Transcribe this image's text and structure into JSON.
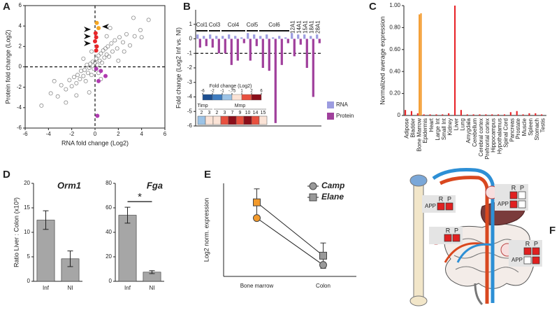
{
  "panel_labels": [
    "A",
    "B",
    "C",
    "D",
    "E",
    "F"
  ],
  "chart_data": [
    {
      "type": "scatter",
      "xlabel": "RNA fold change (Log2)",
      "ylabel": "Protein fold change (Log2)",
      "xlim": [
        -6,
        6
      ],
      "ylim": [
        -6,
        6
      ],
      "xticks": [
        -6,
        -4,
        -2,
        0,
        2,
        4,
        6
      ],
      "yticks": [
        -6,
        -4,
        -2,
        0,
        2,
        4,
        6
      ],
      "series": [
        {
          "color": "#8c8c8c",
          "marker": "open",
          "x": [
            -4.6,
            -3.8,
            -3.2,
            -2.9,
            -2.5,
            -2.2,
            -2.0,
            -1.8,
            -1.6,
            -1.5,
            -1.3,
            -1.2,
            -1.0,
            -0.9,
            -0.8,
            -0.7,
            -0.6,
            -0.5,
            -0.4,
            -0.3,
            -0.2,
            -0.1,
            0.0,
            0.1,
            0.2,
            0.3,
            0.4,
            0.5,
            0.6,
            0.7,
            0.8,
            0.9,
            1.0,
            1.1,
            1.2,
            1.4,
            1.5,
            1.7,
            1.9,
            2.1,
            2.4,
            2.7,
            3.0,
            3.4,
            3.9,
            4.6,
            -0.5,
            0.5,
            -1.0,
            1.0,
            -2.5,
            2.5,
            -0.3,
            0.3,
            1.3,
            -1.6,
            2.0,
            3.3,
            4.0,
            -3.5
          ],
          "values": [
            -3.8,
            -2.6,
            -2.9,
            -1.8,
            -2.2,
            -1.3,
            -1.9,
            -1.0,
            -1.6,
            -0.8,
            -1.2,
            -0.4,
            -0.9,
            -0.3,
            -1.4,
            0.2,
            -0.6,
            -0.1,
            0.3,
            -0.8,
            0.5,
            -0.2,
            0.4,
            0.8,
            0.2,
            1.1,
            0.6,
            1.3,
            0.4,
            1.6,
            0.9,
            1.8,
            1.2,
            2.0,
            1.0,
            2.3,
            1.5,
            2.6,
            1.8,
            2.9,
            2.4,
            3.2,
            2.1,
            3.0,
            3.6,
            4.6,
            -2.5,
            -1.2,
            0.8,
            3.0,
            -3.5,
            1.5,
            1.5,
            -0.6,
            3.8,
            -2.8,
            0.6,
            4.8,
            2.9,
            -1.4
          ]
        },
        {
          "color": "#e8262a",
          "marker": "filled",
          "x": [
            0.05,
            0.1,
            0.0,
            0.15,
            0.1
          ],
          "values": [
            3.3,
            2.9,
            2.5,
            2.0,
            1.6
          ]
        },
        {
          "color": "#f5a623",
          "marker": "filled",
          "x": [
            0.15,
            0.3
          ],
          "values": [
            4.3,
            3.8
          ]
        },
        {
          "color": "#b03bb0",
          "marker": "filled",
          "x": [
            0.1,
            0.5,
            0.9,
            0.3,
            0.2
          ],
          "values": [
            -0.2,
            -0.4,
            -0.9,
            -1.4,
            -4.8
          ]
        }
      ]
    },
    {
      "type": "bar",
      "ylabel": "Fold change (Log2 Inf vs. NI)",
      "ylim": [
        -6,
        2
      ],
      "yticks": [
        1,
        0,
        -1,
        -2,
        -3,
        -4,
        -5,
        -6
      ],
      "threshold": -1,
      "categories": [
        "Col1",
        null,
        "Col3",
        null,
        "Col4",
        null,
        null,
        null,
        "Col5",
        null,
        "Col6",
        null,
        null,
        null,
        null,
        "12A1",
        "14A1",
        "15A1",
        "18A1",
        "28A1"
      ],
      "series": [
        {
          "name": "RNA",
          "color": "#9c9ce0",
          "values": [
            0.3,
            0.2,
            0.3,
            0.2,
            0.2,
            0.3,
            0.2,
            0.1,
            0.4,
            0.3,
            0.2,
            0.3,
            0.1,
            0.2,
            0.1,
            0.4,
            0.3,
            0.3,
            0.2,
            0.3
          ]
        },
        {
          "name": "Protein",
          "color": "#a0409c",
          "values": [
            -0.6,
            -0.5,
            -0.6,
            -1.0,
            -1.0,
            -1.8,
            -1.5,
            -0.3,
            -1.5,
            -0.5,
            -2.0,
            -2.2,
            -5.8,
            -1.8,
            -0.3,
            -1.2,
            -0.4,
            -2.0,
            -4.0,
            -0.3
          ]
        }
      ],
      "heatmap": {
        "title": "Fold change (Log2)",
        "ticks": [
          -6,
          -2,
          -1,
          {
            "value": -0.75,
            "label": "-.75"
          },
          1,
          2,
          6
        ],
        "colors": [
          "#1d4f91",
          "#3e7cc0",
          "#9cc3e6",
          "#fbe3d6",
          "#e8503f",
          "#8b0e1a"
        ],
        "groups": [
          {
            "label": "Timp",
            "genes": [
              2,
              3
            ]
          },
          {
            "label": "Mmp",
            "genes": [
              2,
              3,
              7,
              9,
              10,
              14,
              15
            ]
          }
        ],
        "values": [
          -0.9,
          0.2,
          0.5,
          1.5,
          4,
          1.5,
          5,
          1.2,
          0
        ]
      }
    },
    {
      "type": "bar",
      "ylabel": "Normalized average expression",
      "ylim": [
        0,
        1
      ],
      "yticks": [
        0,
        {
          "value": 0.2,
          "label": "0.20"
        },
        {
          "value": 0.4,
          "label": "0.40"
        },
        {
          "value": 0.6,
          "label": "0.60"
        },
        {
          "value": 0.8,
          "label": "0.80"
        },
        {
          "value": 1,
          "label": "1.00"
        }
      ],
      "categories": [
        "Adipose",
        "Bladder",
        "Bone Marrow",
        "Epidermis",
        "Heart",
        "Large Int",
        "Small Int",
        "Kidney",
        "Liver",
        "Lung",
        "Amygdala",
        "Cerebellum",
        "Cerebral cortex",
        "Prefrontal cortex",
        "Hippocampus",
        "Hypothalamus",
        "Spinal Cord",
        "Pancreas",
        "Prostate",
        "Muscle",
        "Spleen",
        "Stomach",
        "Testis"
      ],
      "category_colors": [
        "#222",
        "#222",
        "#f39a2b",
        "#222",
        "#222",
        "#222",
        "#222",
        "#222",
        "#e8262a",
        "#222",
        "#222",
        "#222",
        "#222",
        "#222",
        "#222",
        "#222",
        "#222",
        "#222",
        "#222",
        "#222",
        "#222",
        "#222",
        "#222"
      ],
      "series": [
        {
          "color": "#e8262a",
          "values": [
            0.05,
            0.04,
            0.02,
            0.01,
            0.01,
            0.01,
            0.01,
            0.02,
            1.0,
            0.05,
            0.01,
            0.01,
            0.01,
            0.01,
            0.01,
            0.01,
            0.01,
            0.03,
            0.04,
            0.01,
            0.02,
            0.02,
            0.01
          ]
        },
        {
          "color": "#f39a2b",
          "values": [
            0,
            0,
            0.92,
            0,
            0,
            0,
            0,
            0,
            0,
            0,
            0,
            0,
            0,
            0,
            0,
            0,
            0,
            0,
            0,
            0,
            0,
            0,
            0
          ]
        },
        {
          "color": "#f39a2b",
          "values": [
            0,
            0,
            0.93,
            0,
            0,
            0,
            0,
            0,
            0,
            0,
            0,
            0,
            0,
            0,
            0,
            0,
            0,
            0,
            0,
            0,
            0,
            0,
            0
          ]
        }
      ]
    },
    {
      "type": "bar",
      "title": "Orm1",
      "title_color": "#e8262a",
      "ylabel": "Ratio Liver : Colon (x10³)",
      "categories": [
        "Inf",
        "NI"
      ],
      "values": [
        12.5,
        4.6
      ],
      "errors": [
        1.9,
        1.6
      ],
      "color": "#a6a6a6",
      "ylim": [
        0,
        20
      ],
      "yticks": [
        0,
        5,
        10,
        15,
        20
      ]
    },
    {
      "type": "bar",
      "title": "Fga",
      "title_color": "#e8262a",
      "annotation": "*",
      "categories": [
        "Inf",
        "NI"
      ],
      "values": [
        54,
        7.5
      ],
      "errors": [
        6.5,
        1.2
      ],
      "color": "#a6a6a6",
      "ylim": [
        0,
        80
      ],
      "yticks": [
        0,
        20,
        40,
        60,
        80
      ]
    },
    {
      "type": "line",
      "ylabel": "Log2 norm. expression",
      "categories": [
        "Bone marrow",
        "Colon"
      ],
      "ylim": [
        -2,
        20
      ],
      "line_color": "#222222",
      "legend_color": "#f39a2b",
      "series": [
        {
          "name": "Camp",
          "marker": "circle",
          "color": "#999999",
          "point_colors": [
            "#f39a2b",
            "#999999"
          ],
          "values": [
            11.8,
            0.7
          ]
        },
        {
          "name": "Elane",
          "marker": "square",
          "color": "#999999",
          "point_colors": [
            "#f39a2b",
            "#999999"
          ],
          "values": [
            15.5,
            2.9
          ],
          "errors": [
            3.2,
            3.0
          ]
        }
      ]
    }
  ],
  "diagram": {
    "boxes": [
      {
        "header": [
          "R",
          "P"
        ],
        "rows": [
          {
            "label": "APP",
            "cells": [
              "#e02020",
              "#e02020"
            ]
          }
        ]
      },
      {
        "header": [
          "R",
          "P"
        ],
        "rows": [
          {
            "cells": [
              "#e02020",
              "#ffffff"
            ]
          },
          {
            "label": "APP",
            "cells": [
              "#e02020",
              "#ffffff"
            ]
          }
        ]
      },
      {
        "header": [
          "R",
          "P"
        ],
        "rows": [
          {
            "cells": [
              "#e02020",
              "#e02020"
            ]
          }
        ]
      },
      {
        "header": [
          "R",
          "P"
        ],
        "rows": [
          {
            "cells": [
              "#e02020",
              "#e02020"
            ]
          },
          {
            "label": "APP",
            "cells": [
              "#ffffff",
              "#e02020"
            ]
          }
        ]
      }
    ]
  }
}
